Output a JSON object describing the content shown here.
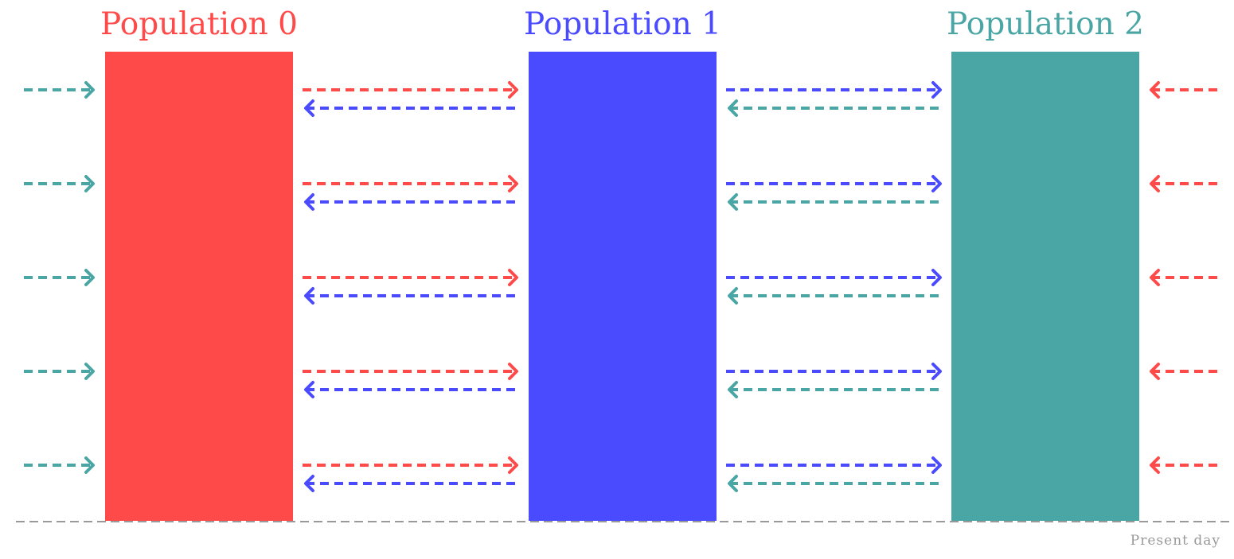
{
  "diagram": {
    "populations": [
      {
        "label": "Population 0",
        "color": "#ff4a4a"
      },
      {
        "label": "Population 1",
        "color": "#4a4aff"
      },
      {
        "label": "Population 2",
        "color": "#4aa5a5"
      }
    ],
    "baseline": {
      "label": "Present day",
      "color": "#999999"
    },
    "migration_rows": 5,
    "migrations": [
      {
        "from": "Population 2",
        "to": "Population 0",
        "direction": "right",
        "wraps": true
      },
      {
        "from": "Population 0",
        "to": "Population 1",
        "direction": "right"
      },
      {
        "from": "Population 1",
        "to": "Population 0",
        "direction": "left"
      },
      {
        "from": "Population 1",
        "to": "Population 2",
        "direction": "right"
      },
      {
        "from": "Population 2",
        "to": "Population 1",
        "direction": "left"
      },
      {
        "from": "Population 0",
        "to": "Population 2",
        "direction": "left",
        "wraps": true
      }
    ]
  }
}
